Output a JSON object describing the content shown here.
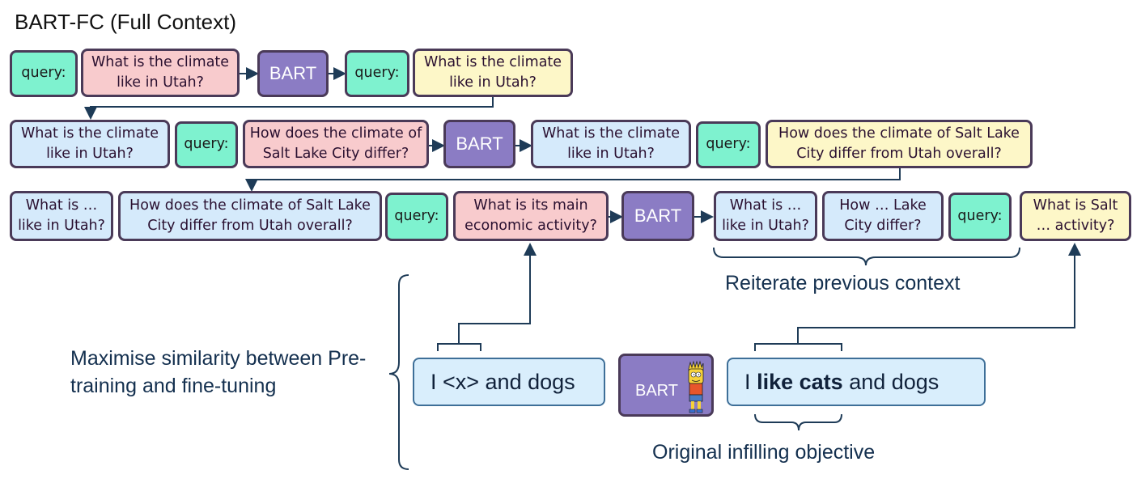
{
  "title": "BART-FC (Full Context)",
  "labels": {
    "query": "query:",
    "bart": "BART"
  },
  "text": {
    "climate_utah": "What is the climate like in Utah?",
    "slc_differ": "How does the climate of Salt Lake City differ?",
    "slc_differ_full": "How does the climate of Salt Lake City differ from Utah overall?",
    "what_is_utah": "What is … like in Utah?",
    "economic": "What is its main economic activity?",
    "how_lake": "How … Lake City differ?",
    "salt_activity": "What is Salt … activity?"
  },
  "annotations": {
    "reiterate": "Reiterate previous context",
    "maximise": "Maximise similarity between Pre-training and fine-tuning",
    "original": "Original infilling objective"
  },
  "example": {
    "masked": "I <x> and dogs",
    "filled_prefix": "I",
    "filled_bold": "like cats",
    "filled_suffix": "and dogs"
  },
  "colors": {
    "query": "#7ef2cf",
    "input_new": "#f8cbcd",
    "output": "#fdf7c8",
    "context": "#d5eafb",
    "bart": "#8b7cc4",
    "arrow": "#1e3b57"
  }
}
